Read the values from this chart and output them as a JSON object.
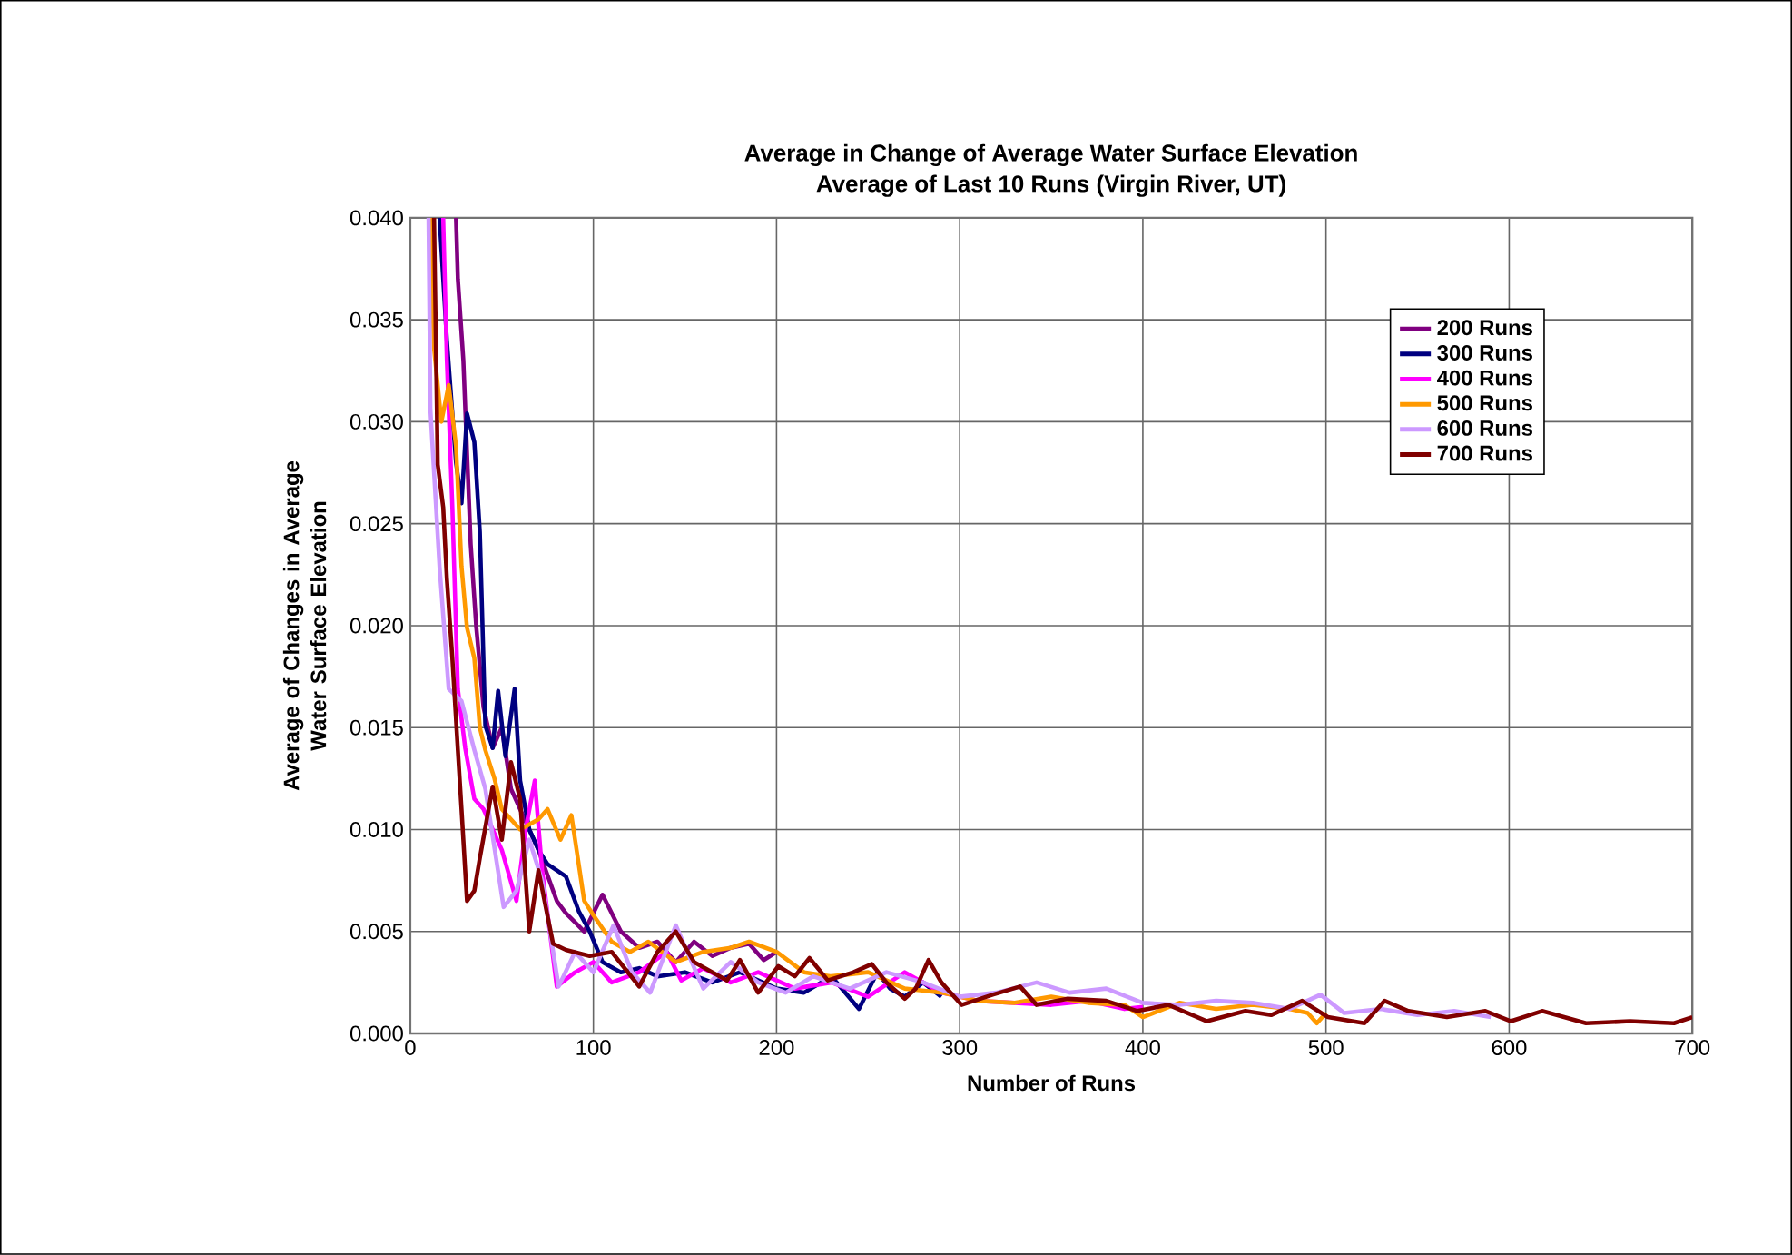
{
  "chart_data": {
    "type": "line",
    "title": "Average in Change of Average Water Surface Elevation",
    "subtitle": "Average of Last 10 Runs (Virgin River, UT)",
    "xlabel": "Number of Runs",
    "ylabel": "Average of Changes in Average Water Surface Elevation",
    "xlim": [
      0,
      700
    ],
    "xticks": [
      0,
      100,
      200,
      300,
      400,
      500,
      600,
      700
    ],
    "ylim": [
      0,
      0.04
    ],
    "yticks": [
      {
        "value": 0,
        "label": "0.000"
      },
      {
        "value": 0.005,
        "label": "0.005"
      },
      {
        "value": 0.01,
        "label": "0.010"
      },
      {
        "value": 0.015,
        "label": "0.015"
      },
      {
        "value": 0.02,
        "label": "0.020"
      },
      {
        "value": 0.025,
        "label": "0.025"
      },
      {
        "value": 0.03,
        "label": "0.030"
      },
      {
        "value": 0.035,
        "label": "0.035"
      },
      {
        "value": 0.04,
        "label": "0.040"
      }
    ],
    "grid": true,
    "legend": "top right",
    "marker": "none",
    "line_style": "solid",
    "series": [
      {
        "name": "200 Runs",
        "color": "#800080",
        "x": [
          25,
          26,
          29,
          33,
          36,
          40,
          45,
          50,
          55,
          60,
          70,
          80,
          85,
          95,
          105,
          115,
          125,
          135,
          145,
          155,
          165,
          175,
          185,
          193,
          200
        ],
        "values": [
          0.04,
          0.037,
          0.033,
          0.024,
          0.02,
          0.016,
          0.014,
          0.015,
          0.012,
          0.011,
          0.009,
          0.0065,
          0.0059,
          0.005,
          0.0068,
          0.005,
          0.0042,
          0.0045,
          0.0035,
          0.0045,
          0.0038,
          0.0042,
          0.0044,
          0.0036,
          0.004
        ]
      },
      {
        "name": "300 Runs",
        "color": "#000080",
        "x": [
          16,
          20,
          25,
          28,
          31,
          35,
          38,
          41,
          45,
          48,
          52,
          57,
          60,
          65,
          70,
          75,
          85,
          92,
          98,
          105,
          115,
          125,
          135,
          150,
          165,
          180,
          200,
          215,
          230,
          245,
          255,
          262,
          270,
          280,
          290
        ],
        "values": [
          0.04,
          0.034,
          0.028,
          0.026,
          0.0304,
          0.029,
          0.0246,
          0.0151,
          0.014,
          0.0168,
          0.0136,
          0.0169,
          0.0124,
          0.01,
          0.009,
          0.0083,
          0.0077,
          0.006,
          0.005,
          0.0035,
          0.003,
          0.0032,
          0.0028,
          0.003,
          0.0025,
          0.003,
          0.0022,
          0.002,
          0.0028,
          0.0012,
          0.003,
          0.0022,
          0.0018,
          0.0025,
          0.0018
        ]
      },
      {
        "name": "400 Runs",
        "color": "#ff00ff",
        "x": [
          18,
          20,
          23,
          26,
          30,
          35,
          40,
          45,
          50,
          58,
          63,
          68,
          72,
          80,
          90,
          100,
          110,
          125,
          140,
          148,
          160,
          175,
          190,
          210,
          230,
          250,
          270,
          290,
          310,
          330,
          350,
          370,
          390,
          400
        ],
        "values": [
          0.04,
          0.033,
          0.0258,
          0.0169,
          0.014,
          0.0115,
          0.011,
          0.01,
          0.009,
          0.0065,
          0.01,
          0.0124,
          0.008,
          0.0023,
          0.003,
          0.0035,
          0.0025,
          0.003,
          0.004,
          0.0026,
          0.0032,
          0.0025,
          0.003,
          0.0022,
          0.0025,
          0.0018,
          0.003,
          0.002,
          0.0016,
          0.0015,
          0.0014,
          0.0016,
          0.0012,
          0.0013
        ]
      },
      {
        "name": "500 Runs",
        "color": "#ff9900",
        "x": [
          11,
          13,
          17,
          21,
          25,
          28,
          31,
          35,
          38,
          41,
          46,
          50,
          60,
          70,
          75,
          82,
          88,
          95,
          100,
          110,
          120,
          130,
          145,
          160,
          175,
          185,
          200,
          215,
          230,
          250,
          270,
          290,
          310,
          330,
          350,
          370,
          390,
          400,
          420,
          440,
          460,
          480,
          490,
          495,
          500
        ],
        "values": [
          0.04,
          0.0336,
          0.03,
          0.0318,
          0.0288,
          0.0229,
          0.0199,
          0.0184,
          0.015,
          0.0139,
          0.0125,
          0.011,
          0.01,
          0.0105,
          0.011,
          0.0095,
          0.0107,
          0.0065,
          0.0058,
          0.0045,
          0.004,
          0.0045,
          0.0035,
          0.004,
          0.0042,
          0.0045,
          0.004,
          0.003,
          0.0028,
          0.003,
          0.0022,
          0.002,
          0.0016,
          0.0015,
          0.0018,
          0.0015,
          0.0014,
          0.0008,
          0.0015,
          0.0012,
          0.0014,
          0.0012,
          0.001,
          0.0005,
          0.001
        ]
      },
      {
        "name": "600 Runs",
        "color": "#cc99ff",
        "x": [
          10,
          11,
          16,
          21,
          28,
          35,
          41,
          51,
          58,
          65,
          72,
          81,
          90,
          100,
          111,
          121,
          131,
          145,
          160,
          175,
          190,
          205,
          220,
          240,
          260,
          280,
          300,
          320,
          342,
          360,
          380,
          400,
          420,
          440,
          460,
          480,
          497,
          510,
          530,
          550,
          570,
          590
        ],
        "values": [
          0.04,
          0.0306,
          0.0229,
          0.0169,
          0.0163,
          0.0139,
          0.012,
          0.0062,
          0.007,
          0.0095,
          0.0075,
          0.0023,
          0.004,
          0.003,
          0.0053,
          0.003,
          0.002,
          0.0053,
          0.0022,
          0.0035,
          0.0025,
          0.002,
          0.0028,
          0.0022,
          0.003,
          0.0025,
          0.0018,
          0.002,
          0.0025,
          0.002,
          0.0022,
          0.0015,
          0.0014,
          0.0016,
          0.0015,
          0.0012,
          0.0019,
          0.001,
          0.0012,
          0.0009,
          0.0011,
          0.0008
        ]
      },
      {
        "name": "700 Runs",
        "color": "#800000",
        "x": [
          13,
          15,
          18,
          20,
          23,
          26,
          28,
          31,
          35,
          38,
          45,
          50,
          55,
          60,
          65,
          70,
          78,
          85,
          98,
          110,
          125,
          135,
          145,
          155,
          165,
          173,
          180,
          190,
          201,
          210,
          218,
          228,
          242,
          252,
          260,
          270,
          276,
          283,
          290,
          301,
          318,
          333,
          342,
          359,
          380,
          397,
          414,
          435,
          456,
          470,
          487,
          501,
          521,
          532,
          545,
          566,
          587,
          601,
          618,
          642,
          666,
          690,
          700
        ],
        "values": [
          0.04,
          0.0279,
          0.0258,
          0.0223,
          0.0184,
          0.0139,
          0.011,
          0.0065,
          0.007,
          0.0086,
          0.0121,
          0.0095,
          0.0133,
          0.0115,
          0.005,
          0.008,
          0.0044,
          0.0041,
          0.0038,
          0.004,
          0.0023,
          0.004,
          0.005,
          0.0035,
          0.003,
          0.0026,
          0.0036,
          0.002,
          0.0033,
          0.0028,
          0.0037,
          0.0026,
          0.003,
          0.0034,
          0.0025,
          0.0017,
          0.0022,
          0.0036,
          0.0025,
          0.0014,
          0.0019,
          0.0023,
          0.0014,
          0.0017,
          0.0016,
          0.0011,
          0.0014,
          0.0006,
          0.0011,
          0.0009,
          0.0016,
          0.0008,
          0.0005,
          0.0016,
          0.0011,
          0.0008,
          0.0011,
          0.0006,
          0.0011,
          0.0005,
          0.0006,
          0.0005,
          0.0008
        ]
      }
    ]
  }
}
